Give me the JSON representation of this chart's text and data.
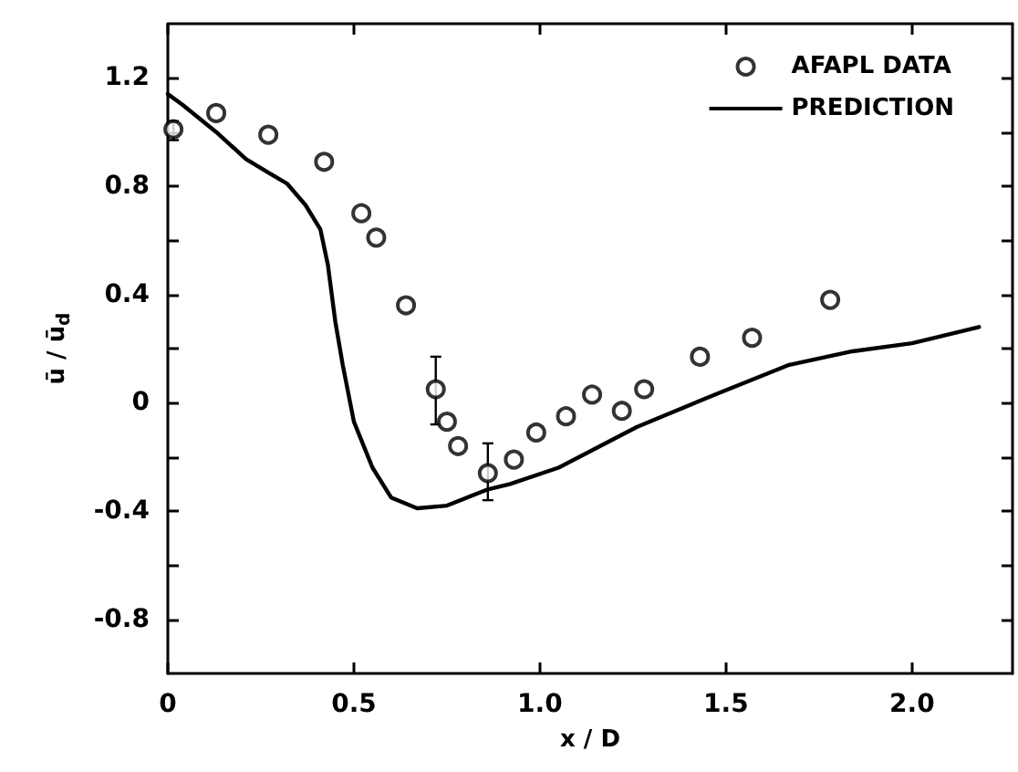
{
  "chart_data": {
    "type": "scatter",
    "xlabel": "x / D",
    "ylabel": "ū / ū$_{d}$",
    "xlim": [
      0,
      2.27
    ],
    "ylim": [
      -1.0,
      1.4
    ],
    "xticks": [
      0,
      0.5,
      {
        "value": 1,
        "label": "1.0"
      },
      1.5,
      {
        "value": 2,
        "label": "2.0"
      }
    ],
    "yticks": [
      {
        "value": -0.8,
        "label": "-0.8"
      },
      {
        "value": -0.6,
        "label": null
      },
      {
        "value": -0.4,
        "label": "-0.4"
      },
      {
        "value": -0.2,
        "label": null
      },
      0,
      {
        "value": 0.2,
        "label": null
      },
      0.4,
      {
        "value": 0.6,
        "label": null
      },
      0.8,
      {
        "value": 1.0,
        "label": null
      },
      1.2
    ],
    "grid": false,
    "legend": "top right",
    "series": [
      {
        "name": "AFAPL DATA",
        "marker": "circle",
        "color": "#000000",
        "x": [
          0.015,
          0.13,
          0.27,
          0.42,
          0.52,
          0.56,
          0.64,
          0.72,
          0.75,
          0.78,
          0.86,
          0.93,
          0.99,
          1.07,
          1.14,
          1.22,
          1.28,
          1.43,
          1.57,
          1.78
        ],
        "values": [
          1.01,
          1.07,
          0.99,
          0.89,
          0.7,
          0.61,
          0.36,
          0.05,
          -0.07,
          -0.16,
          -0.26,
          -0.21,
          -0.11,
          -0.05,
          0.03,
          -0.03,
          0.05,
          0.17,
          0.24,
          0.38
        ],
        "errors": [
          [
            0.97,
            1.04
          ],
          null,
          null,
          null,
          null,
          null,
          null,
          [
            -0.08,
            0.17
          ],
          null,
          null,
          [
            -0.36,
            -0.15
          ],
          null,
          null,
          null,
          null,
          null,
          null,
          null,
          null,
          null
        ]
      },
      {
        "name": "PREDICTION",
        "type": "line",
        "marker": "none",
        "line_style": "solid",
        "color": "#000000",
        "x": [
          0,
          0.04,
          0.13,
          0.21,
          0.27,
          0.32,
          0.37,
          0.41,
          0.43,
          0.45,
          0.47,
          0.5,
          0.55,
          0.6,
          0.67,
          0.75,
          0.86,
          0.92,
          1.05,
          1.26,
          1.47,
          1.67,
          1.84,
          2.0,
          2.18
        ],
        "values": [
          1.14,
          1.1,
          1.0,
          0.9,
          0.85,
          0.81,
          0.73,
          0.64,
          0.51,
          0.3,
          0.14,
          -0.07,
          -0.24,
          -0.35,
          -0.39,
          -0.38,
          -0.32,
          -0.3,
          -0.24,
          -0.09,
          0.03,
          0.14,
          0.19,
          0.22,
          0.28
        ]
      }
    ]
  }
}
